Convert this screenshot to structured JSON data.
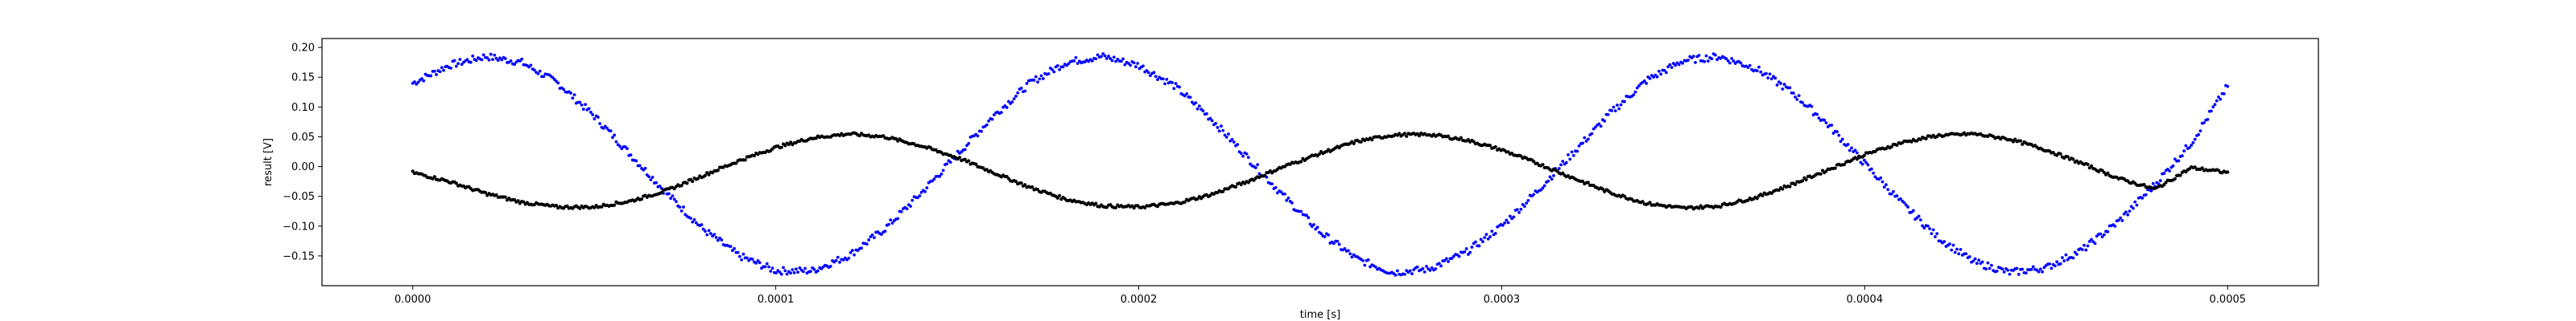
{
  "chart_data": {
    "type": "scatter",
    "title": "",
    "xlabel": "time [s]",
    "ylabel": "result [V]",
    "xlim": [
      -2.5e-05,
      0.000525
    ],
    "ylim": [
      -0.2,
      0.215
    ],
    "grid": false,
    "x_ticks": [
      0.0,
      0.0001,
      0.0002,
      0.0003,
      0.0004,
      0.0005
    ],
    "x_tick_labels": [
      "0.0000",
      "0.0001",
      "0.0002",
      "0.0003",
      "0.0004",
      "0.0005"
    ],
    "y_ticks": [
      -0.15,
      -0.1,
      -0.05,
      0.0,
      0.05,
      0.1,
      0.15,
      0.2
    ],
    "y_tick_labels": [
      "−0.15",
      "−0.10",
      "−0.05",
      "0.00",
      "0.05",
      "0.10",
      "0.15",
      "0.20"
    ],
    "x_range": [
      0.0,
      0.0005
    ],
    "series": [
      {
        "color": "#0000ff",
        "marker": "dot",
        "x": [
          0.0,
          1e-05,
          2e-05,
          3e-05,
          4e-05,
          5e-05,
          6e-05,
          7e-05,
          8e-05,
          9e-05,
          0.0001,
          0.00011,
          0.00012,
          0.00013,
          0.00014,
          0.00015,
          0.00016,
          0.00017,
          0.00018,
          0.00019,
          0.0002,
          0.00021,
          0.00022,
          0.00023,
          0.00024,
          0.00025,
          0.00026,
          0.00027,
          0.00028,
          0.00029,
          0.0003,
          0.00031,
          0.00032,
          0.00033,
          0.00034,
          0.00035,
          0.00036,
          0.00037,
          0.00038,
          0.00039,
          0.0004,
          0.00041,
          0.00042,
          0.00043,
          0.00044,
          0.00045,
          0.00046,
          0.00047,
          0.00048,
          0.00049,
          0.0005
        ],
        "y": [
          0.14,
          0.17,
          0.185,
          0.175,
          0.14,
          0.085,
          0.02,
          -0.045,
          -0.105,
          -0.15,
          -0.175,
          -0.175,
          -0.15,
          -0.105,
          -0.045,
          0.02,
          0.085,
          0.14,
          0.175,
          0.185,
          0.17,
          0.135,
          0.08,
          0.015,
          -0.05,
          -0.11,
          -0.155,
          -0.178,
          -0.172,
          -0.145,
          -0.1,
          -0.04,
          0.025,
          0.09,
          0.145,
          0.178,
          0.185,
          0.165,
          0.125,
          0.07,
          0.005,
          -0.06,
          -0.118,
          -0.16,
          -0.178,
          -0.17,
          -0.14,
          -0.092,
          -0.03,
          0.04,
          0.135
        ]
      },
      {
        "color": "#000000",
        "marker": "dot",
        "x": [
          0.0,
          1e-05,
          2e-05,
          3e-05,
          4e-05,
          5e-05,
          6e-05,
          7e-05,
          8e-05,
          9e-05,
          0.0001,
          0.00011,
          0.00012,
          0.00013,
          0.00014,
          0.00015,
          0.00016,
          0.00017,
          0.00018,
          0.00019,
          0.0002,
          0.00021,
          0.00022,
          0.00023,
          0.00024,
          0.00025,
          0.00026,
          0.00027,
          0.00028,
          0.00029,
          0.0003,
          0.00031,
          0.00032,
          0.00033,
          0.00034,
          0.00035,
          0.00036,
          0.00037,
          0.00038,
          0.00039,
          0.0004,
          0.00041,
          0.00042,
          0.00043,
          0.00044,
          0.00045,
          0.00046,
          0.00047,
          0.00048,
          0.00049,
          0.0005
        ],
        "y": [
          -0.01,
          -0.025,
          -0.045,
          -0.06,
          -0.068,
          -0.068,
          -0.058,
          -0.04,
          -0.015,
          0.01,
          0.032,
          0.048,
          0.055,
          0.05,
          0.035,
          0.015,
          -0.01,
          -0.035,
          -0.055,
          -0.066,
          -0.068,
          -0.062,
          -0.047,
          -0.025,
          0.0,
          0.022,
          0.042,
          0.053,
          0.054,
          0.045,
          0.028,
          0.005,
          -0.02,
          -0.044,
          -0.062,
          -0.07,
          -0.066,
          -0.052,
          -0.03,
          -0.005,
          0.02,
          0.04,
          0.052,
          0.055,
          0.046,
          0.028,
          0.005,
          -0.02,
          -0.038,
          -0.002,
          -0.01
        ]
      }
    ]
  }
}
